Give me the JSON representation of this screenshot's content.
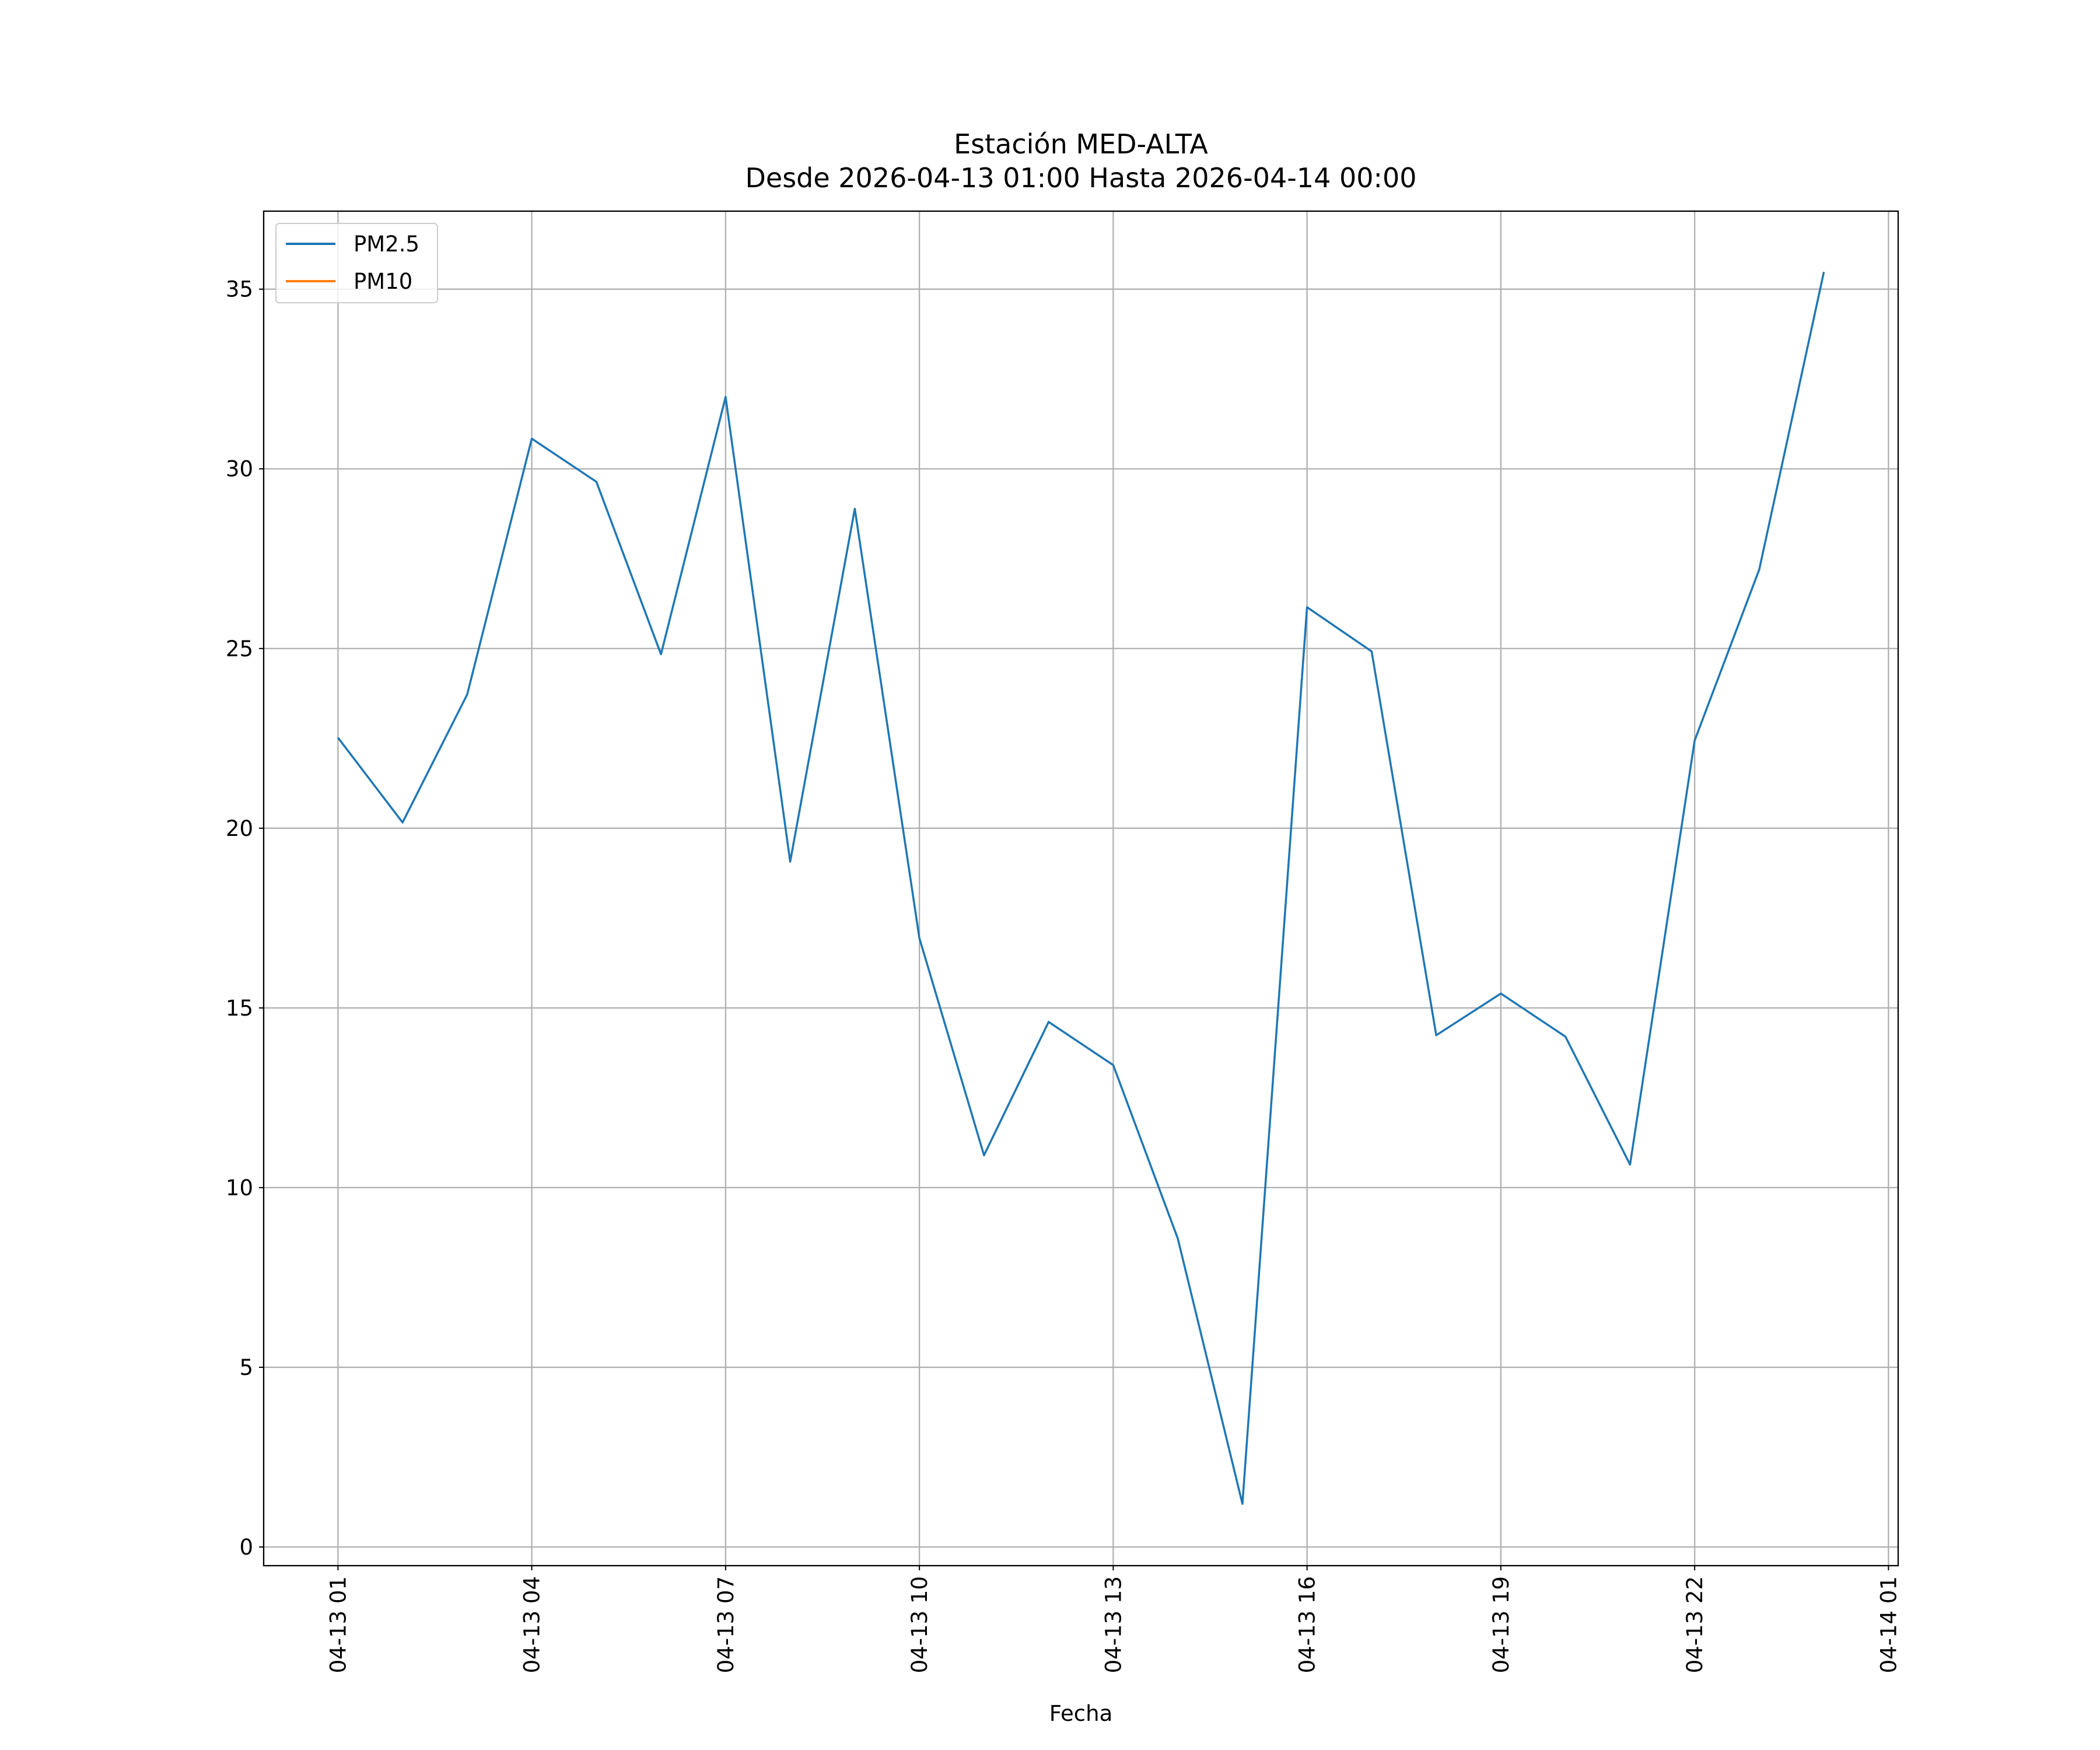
{
  "chart_data": {
    "type": "line",
    "title": "Estación MED-ALTA",
    "subtitle": "Desde 2026-04-13 01:00 Hasta 2026-04-14 00:00",
    "xlabel": "Fecha",
    "x": [
      "2026-04-13 01:00",
      "2026-04-13 02:00",
      "2026-04-13 03:00",
      "2026-04-13 04:00",
      "2026-04-13 05:00",
      "2026-04-13 06:00",
      "2026-04-13 07:00",
      "2026-04-13 08:00",
      "2026-04-13 09:00",
      "2026-04-13 10:00",
      "2026-04-13 11:00",
      "2026-04-13 12:00",
      "2026-04-13 13:00",
      "2026-04-13 14:00",
      "2026-04-13 15:00",
      "2026-04-13 16:00",
      "2026-04-13 17:00",
      "2026-04-13 18:00",
      "2026-04-13 19:00",
      "2026-04-13 20:00",
      "2026-04-13 21:00",
      "2026-04-13 22:00",
      "2026-04-13 23:00",
      "2026-04-14 00:00"
    ],
    "series": [
      {
        "name": "PM2.5",
        "color": "#1f77b4",
        "values": [
          22.52,
          20.16,
          23.72,
          30.84,
          29.64,
          24.84,
          32.0,
          19.07,
          28.89,
          16.94,
          10.9,
          14.61,
          13.41,
          8.58,
          1.2,
          26.15,
          24.92,
          14.24,
          15.4,
          14.2,
          10.64,
          22.44,
          27.2,
          35.48
        ]
      },
      {
        "name": "PM10",
        "color": "#ff7f0e",
        "values": [
          null,
          null,
          null,
          null,
          null,
          null,
          null,
          null,
          null,
          null,
          null,
          null,
          null,
          null,
          null,
          null,
          null,
          null,
          null,
          null,
          null,
          null,
          null,
          null
        ]
      }
    ],
    "xlim": [
      "2026-04-12 23:51",
      "2026-04-14 01:09"
    ],
    "xticks": [
      {
        "value": "2026-04-13 01:00",
        "label": "04-13 01"
      },
      {
        "value": "2026-04-13 04:00",
        "label": "04-13 04"
      },
      {
        "value": "2026-04-13 07:00",
        "label": "04-13 07"
      },
      {
        "value": "2026-04-13 10:00",
        "label": "04-13 10"
      },
      {
        "value": "2026-04-13 13:00",
        "label": "04-13 13"
      },
      {
        "value": "2026-04-13 16:00",
        "label": "04-13 16"
      },
      {
        "value": "2026-04-13 19:00",
        "label": "04-13 19"
      },
      {
        "value": "2026-04-13 22:00",
        "label": "04-13 22"
      },
      {
        "value": "2026-04-14 01:00",
        "label": "04-14 01"
      }
    ],
    "ylim": [
      -0.52,
      37.17
    ],
    "yticks": [
      0,
      5,
      10,
      15,
      20,
      25,
      30,
      35
    ],
    "grid": true,
    "legend": "upper left"
  }
}
